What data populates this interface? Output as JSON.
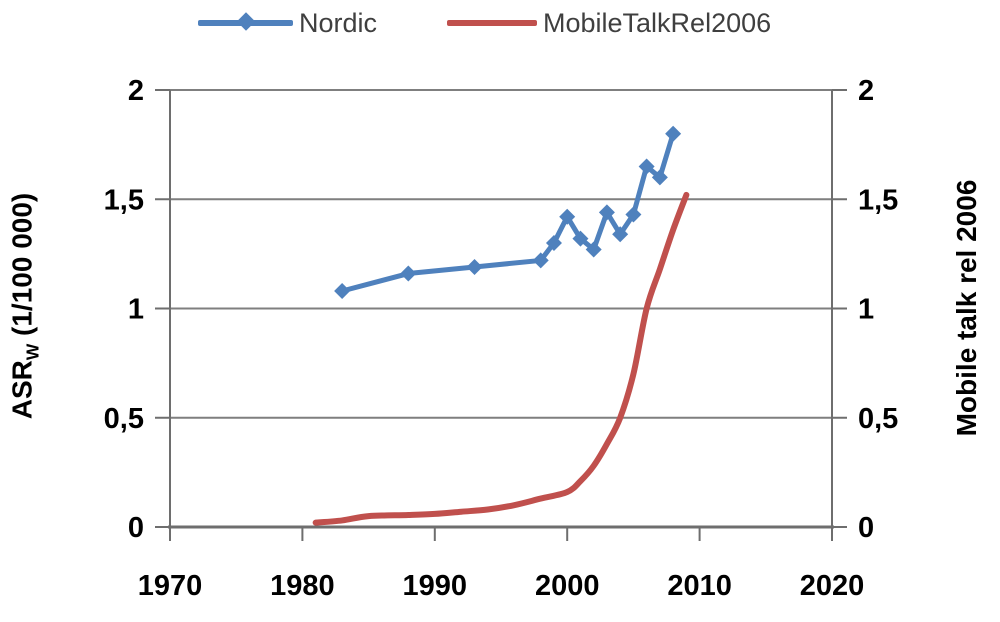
{
  "legend": {
    "items": [
      {
        "label": "Nordic",
        "color": "#4F81BD",
        "marker": "line-diamond"
      },
      {
        "label": "MobileTalkRel2006",
        "color": "#C0504D",
        "marker": "line"
      }
    ]
  },
  "chart_data": {
    "type": "line",
    "title": "",
    "grid": true,
    "legend_position": "top",
    "x_axis": {
      "range": [
        1970,
        2020
      ],
      "tick_values": [
        1970,
        1980,
        1990,
        2000,
        2010,
        2020
      ],
      "tick_labels": [
        "1970",
        "1980",
        "1990",
        "2000",
        "2010",
        "2020"
      ]
    },
    "left_axis": {
      "label": "ASRW (1/100 000)",
      "label_main": "ASR",
      "label_sub": "W",
      "label_unit": " (1/100 000)",
      "range": [
        0,
        2
      ],
      "tick_values": [
        0,
        0.5,
        1,
        1.5,
        2
      ],
      "tick_labels": [
        "0",
        "0,5",
        "1",
        "1,5",
        "2"
      ]
    },
    "right_axis": {
      "label": "Mobile talk rel 2006",
      "range": [
        0,
        2
      ],
      "tick_values": [
        0,
        0.5,
        1,
        1.5,
        2
      ],
      "tick_labels": [
        "0",
        "0,5",
        "1",
        "1,5",
        "2"
      ]
    },
    "series": [
      {
        "name": "Nordic",
        "color": "#4F81BD",
        "marker": "diamond",
        "axis": "left",
        "smooth": false,
        "points": [
          [
            1983,
            1.08
          ],
          [
            1988,
            1.16
          ],
          [
            1993,
            1.19
          ],
          [
            1998,
            1.22
          ],
          [
            1999,
            1.3
          ],
          [
            2000,
            1.42
          ],
          [
            2001,
            1.32
          ],
          [
            2002,
            1.27
          ],
          [
            2003,
            1.44
          ],
          [
            2004,
            1.34
          ],
          [
            2005,
            1.43
          ],
          [
            2006,
            1.65
          ],
          [
            2007,
            1.6
          ],
          [
            2008,
            1.8
          ]
        ]
      },
      {
        "name": "MobileTalkRel2006",
        "color": "#C0504D",
        "marker": "none",
        "axis": "right",
        "smooth": true,
        "points": [
          [
            1981,
            0.02
          ],
          [
            1983,
            0.03
          ],
          [
            1985,
            0.05
          ],
          [
            1988,
            0.055
          ],
          [
            1990,
            0.06
          ],
          [
            1992,
            0.07
          ],
          [
            1994,
            0.08
          ],
          [
            1996,
            0.1
          ],
          [
            1998,
            0.13
          ],
          [
            2000,
            0.16
          ],
          [
            2001,
            0.21
          ],
          [
            2002,
            0.28
          ],
          [
            2003,
            0.38
          ],
          [
            2004,
            0.5
          ],
          [
            2005,
            0.7
          ],
          [
            2006,
            1.0
          ],
          [
            2007,
            1.18
          ],
          [
            2008,
            1.36
          ],
          [
            2009,
            1.52
          ]
        ]
      }
    ]
  },
  "style": {
    "grid_color": "#7f7f7f",
    "axis_color": "#6e6e6e",
    "tick_label_color": "#000000"
  }
}
